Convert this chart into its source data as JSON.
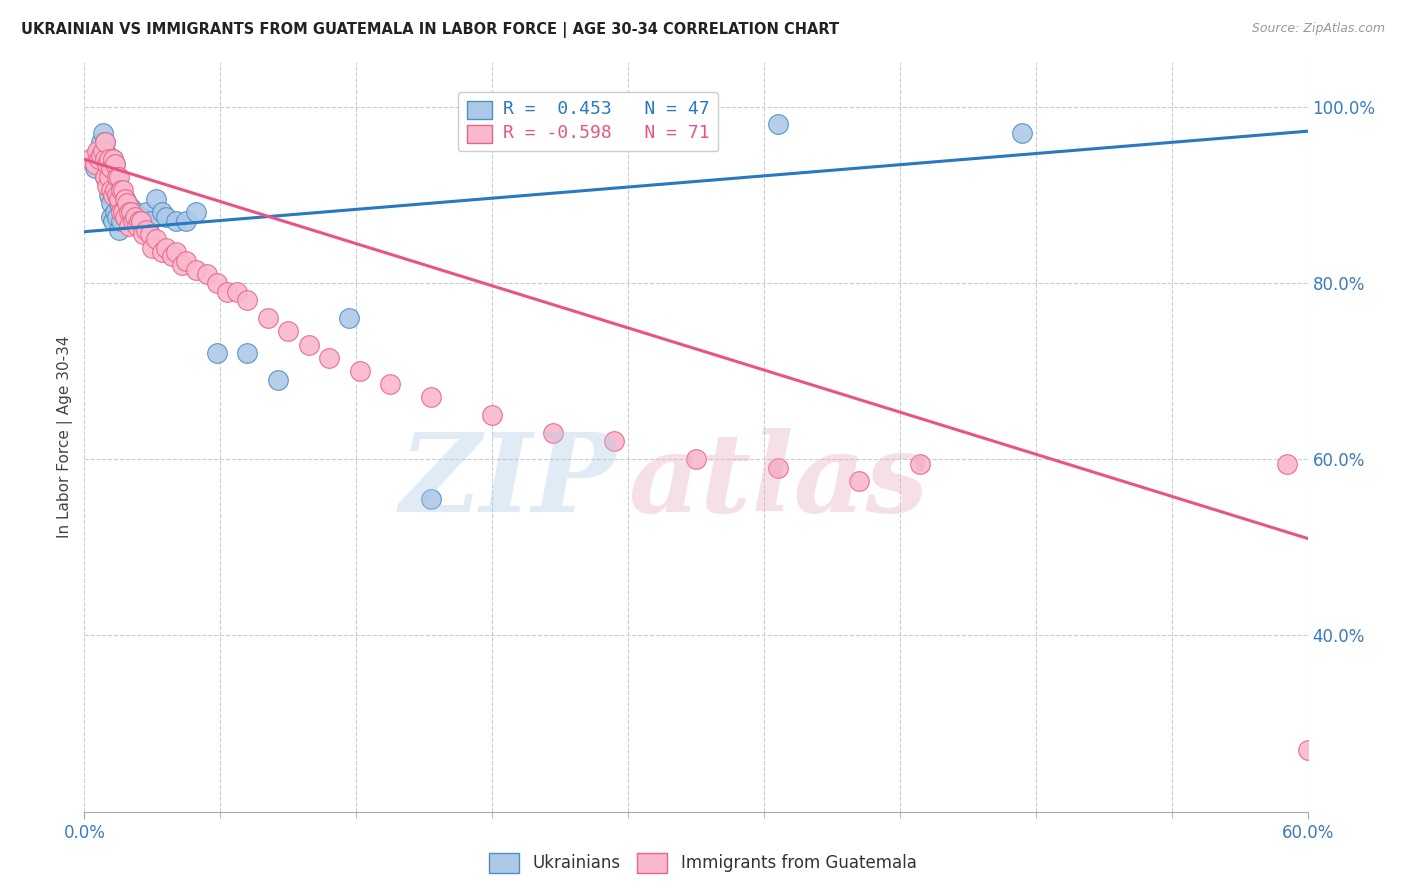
{
  "title": "UKRAINIAN VS IMMIGRANTS FROM GUATEMALA IN LABOR FORCE | AGE 30-34 CORRELATION CHART",
  "source": "Source: ZipAtlas.com",
  "ylabel": "In Labor Force | Age 30-34",
  "xlim": [
    0.0,
    0.6
  ],
  "ylim": [
    0.2,
    1.05
  ],
  "blue_R": 0.453,
  "blue_N": 47,
  "pink_R": -0.598,
  "pink_N": 71,
  "blue_color": "#aec9e8",
  "pink_color": "#f9b8cb",
  "blue_edge_color": "#4a90c4",
  "pink_edge_color": "#e8648a",
  "blue_line_color": "#2979c0",
  "pink_line_color": "#e85585",
  "blue_scatter_x": [
    0.005,
    0.007,
    0.008,
    0.009,
    0.01,
    0.01,
    0.01,
    0.01,
    0.011,
    0.012,
    0.013,
    0.013,
    0.014,
    0.014,
    0.015,
    0.015,
    0.016,
    0.016,
    0.017,
    0.017,
    0.018,
    0.018,
    0.019,
    0.02,
    0.02,
    0.021,
    0.022,
    0.023,
    0.024,
    0.025,
    0.026,
    0.028,
    0.03,
    0.032,
    0.035,
    0.038,
    0.04,
    0.045,
    0.05,
    0.055,
    0.065,
    0.08,
    0.095,
    0.13,
    0.17,
    0.34,
    0.46
  ],
  "blue_scatter_y": [
    0.93,
    0.95,
    0.96,
    0.97,
    0.96,
    0.95,
    0.93,
    0.92,
    0.94,
    0.9,
    0.89,
    0.875,
    0.94,
    0.87,
    0.935,
    0.88,
    0.9,
    0.875,
    0.89,
    0.86,
    0.895,
    0.87,
    0.89,
    0.895,
    0.875,
    0.89,
    0.87,
    0.885,
    0.875,
    0.88,
    0.87,
    0.875,
    0.88,
    0.87,
    0.895,
    0.88,
    0.875,
    0.87,
    0.87,
    0.88,
    0.72,
    0.72,
    0.69,
    0.76,
    0.555,
    0.98,
    0.97
  ],
  "pink_scatter_x": [
    0.003,
    0.005,
    0.006,
    0.007,
    0.008,
    0.009,
    0.01,
    0.01,
    0.01,
    0.011,
    0.011,
    0.012,
    0.012,
    0.013,
    0.013,
    0.014,
    0.014,
    0.015,
    0.015,
    0.016,
    0.016,
    0.017,
    0.017,
    0.018,
    0.018,
    0.019,
    0.019,
    0.02,
    0.02,
    0.021,
    0.022,
    0.022,
    0.023,
    0.024,
    0.025,
    0.026,
    0.027,
    0.028,
    0.029,
    0.03,
    0.032,
    0.033,
    0.035,
    0.038,
    0.04,
    0.043,
    0.045,
    0.048,
    0.05,
    0.055,
    0.06,
    0.065,
    0.07,
    0.075,
    0.08,
    0.09,
    0.1,
    0.11,
    0.12,
    0.135,
    0.15,
    0.17,
    0.2,
    0.23,
    0.26,
    0.3,
    0.34,
    0.38,
    0.41,
    0.59,
    0.6
  ],
  "pink_scatter_y": [
    0.94,
    0.935,
    0.95,
    0.94,
    0.945,
    0.95,
    0.94,
    0.96,
    0.92,
    0.935,
    0.91,
    0.94,
    0.92,
    0.93,
    0.905,
    0.94,
    0.9,
    0.935,
    0.905,
    0.92,
    0.9,
    0.92,
    0.895,
    0.905,
    0.88,
    0.905,
    0.88,
    0.895,
    0.875,
    0.89,
    0.88,
    0.865,
    0.88,
    0.87,
    0.875,
    0.865,
    0.87,
    0.87,
    0.855,
    0.86,
    0.855,
    0.84,
    0.85,
    0.835,
    0.84,
    0.83,
    0.835,
    0.82,
    0.825,
    0.815,
    0.81,
    0.8,
    0.79,
    0.79,
    0.78,
    0.76,
    0.745,
    0.73,
    0.715,
    0.7,
    0.685,
    0.67,
    0.65,
    0.63,
    0.62,
    0.6,
    0.59,
    0.575,
    0.595,
    0.595,
    0.27
  ],
  "blue_line_y0": 0.858,
  "blue_line_y1": 0.972,
  "pink_line_y0": 0.94,
  "pink_line_y1": 0.51,
  "yticks": [
    0.4,
    0.6,
    0.8,
    1.0
  ],
  "ytick_labels": [
    "40.0%",
    "60.0%",
    "80.0%",
    "100.0%"
  ],
  "xtick_minor_count": 9,
  "grid_color": "#cccccc",
  "grid_style": "--",
  "bg_color": "#ffffff",
  "legend_blue_text": "R =  0.453   N = 47",
  "legend_pink_text": "R = -0.598   N = 71",
  "watermark_zip_color": "#aac8e8",
  "watermark_atlas_color": "#e8a8bc",
  "watermark_alpha": 0.35
}
